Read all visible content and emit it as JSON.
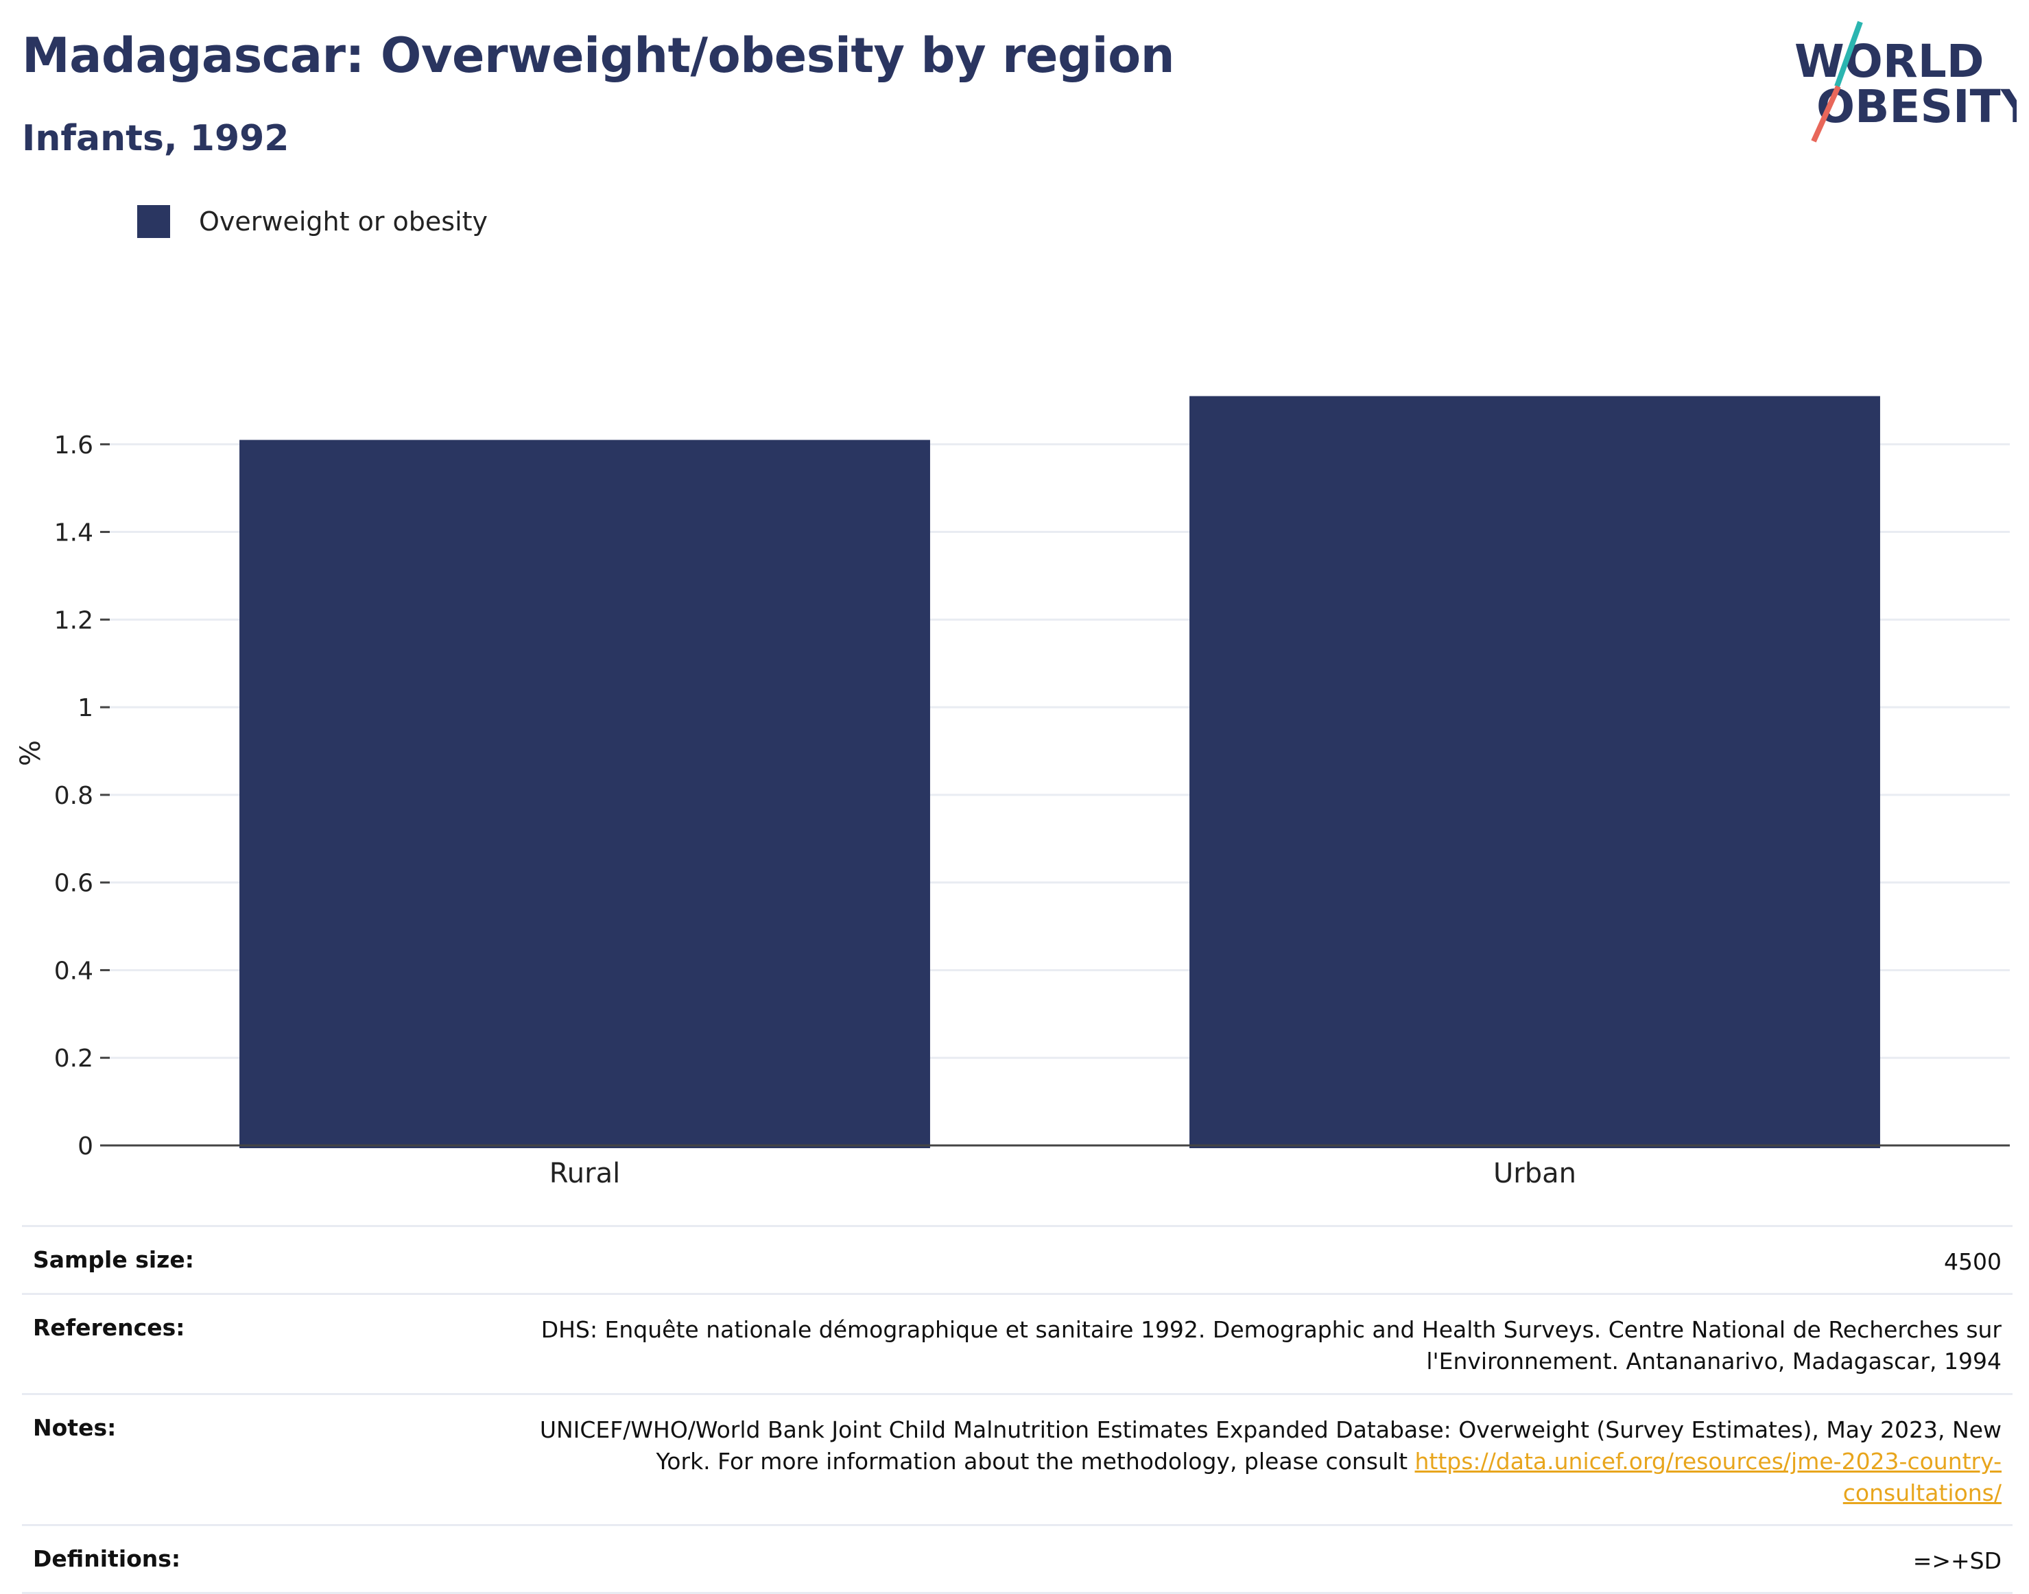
{
  "title": "Madagascar: Overweight/obesity by region",
  "subtitle": "Infants, 1992",
  "logo": {
    "line1": "WORLD",
    "line2": "OBESITY",
    "accent1": "#2bb5b0",
    "accent2": "#e8675a",
    "color": "#2a3560"
  },
  "legend": {
    "label": "Overweight or obesity",
    "color": "#2a3661"
  },
  "chart_data": {
    "type": "bar",
    "categories": [
      "Rural",
      "Urban"
    ],
    "series": [
      {
        "name": "Overweight or obesity",
        "values": [
          1.61,
          1.71
        ]
      }
    ],
    "ylabel": "%",
    "ylim": [
      0,
      1.8
    ],
    "yticks": [
      "0",
      "0.2",
      "0.4",
      "0.6",
      "0.8",
      "1",
      "1.2",
      "1.4",
      "1.6"
    ],
    "grid": true,
    "bar_color": "#2a3661"
  },
  "meta": {
    "sample_size_label": "Sample size:",
    "sample_size_value": "4500",
    "references_label": "References:",
    "references_line1": "DHS: Enquête nationale démographique et sanitaire 1992. Demographic and Health Surveys. Centre National de Recherches sur",
    "references_line2": "l'Environnement. Antananarivo, Madagascar, 1994",
    "notes_label": "Notes:",
    "notes_line1": "UNICEF/WHO/World Bank Joint Child Malnutrition Estimates Expanded Database: Overweight (Survey Estimates), May 2023, New",
    "notes_line2_text": "York. For more information about the methodology, please consult ",
    "notes_link": "https://data.unicef.org/resources/jme-2023-country-consultations/",
    "definitions_label": "Definitions:",
    "definitions_value": "=>+SD"
  }
}
